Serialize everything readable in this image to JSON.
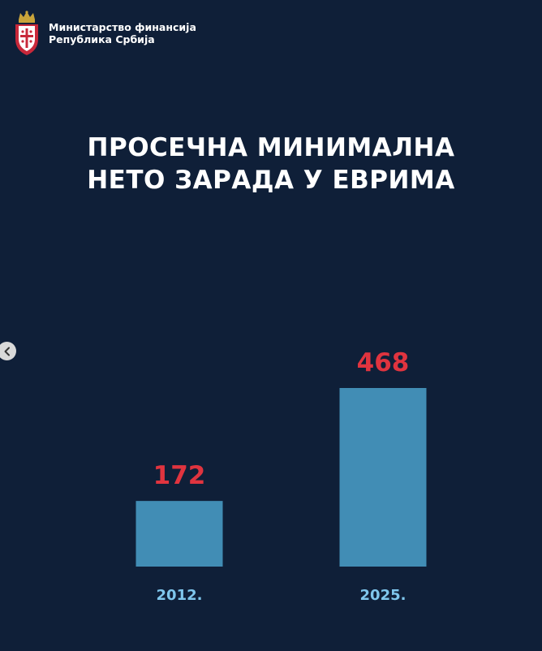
{
  "header": {
    "ministry_line1": "Министарство финансија",
    "ministry_line2": "Република Србија"
  },
  "colors": {
    "background": "#0f1f38",
    "bar": "#418db5",
    "value_label": "#e0343f",
    "year_label": "#7fc6ec",
    "title": "#ffffff"
  },
  "chart_data": {
    "type": "bar",
    "title": [
      "ПРОСЕЧНА МИНИМАЛНА",
      "НЕТО ЗАРАДА У ЕВРИМА"
    ],
    "categories": [
      "2012.",
      "2025."
    ],
    "values": [
      172,
      468
    ],
    "value_labels": [
      "172",
      "468"
    ],
    "ylim": [
      0,
      500
    ],
    "grid": false,
    "legend": "none"
  },
  "carousel": {
    "prev_icon": "chevron-left-icon"
  }
}
